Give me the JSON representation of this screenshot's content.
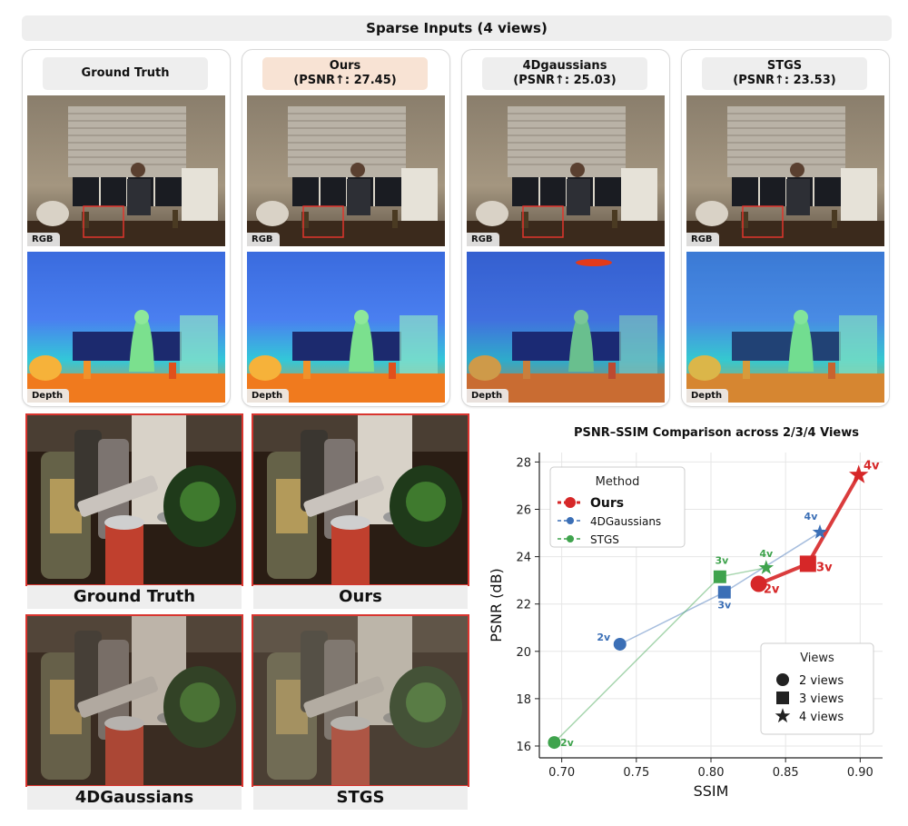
{
  "banner": "Sparse Inputs (4 views)",
  "columns": [
    {
      "title_line1": "Ground Truth",
      "title_line2": ""
    },
    {
      "title_line1": "Ours",
      "title_line2": "(PSNR↑: 27.45)"
    },
    {
      "title_line1": "4Dgaussians",
      "title_line2": "(PSNR↑: 25.03)"
    },
    {
      "title_line1": "STGS",
      "title_line2": "(PSNR↑: 23.53)"
    }
  ],
  "tags": {
    "rgb": "RGB",
    "depth": "Depth"
  },
  "crops": [
    "Ground Truth",
    "Ours",
    "4DGaussians",
    "STGS"
  ],
  "colors": {
    "ours": "#d62728",
    "gaussians4d": "#3b6fb6",
    "stgs": "#3fa34d",
    "highlight": "#f8e3d4"
  },
  "chart_data": {
    "type": "scatter",
    "title": "PSNR–SSIM Comparison across 2/3/4 Views",
    "xlabel": "SSIM",
    "ylabel": "PSNR (dB)",
    "xlim": [
      0.685,
      0.915
    ],
    "ylim": [
      15.5,
      28.4
    ],
    "xticks": [
      "0.70",
      "0.75",
      "0.80",
      "0.85",
      "0.90"
    ],
    "yticks": [
      "16",
      "18",
      "20",
      "22",
      "24",
      "26",
      "28"
    ],
    "grid": true,
    "legend_method": {
      "title": "Method",
      "placement": "top-left",
      "entries": [
        "Ours",
        "4DGaussians",
        "STGS"
      ]
    },
    "legend_views": {
      "title": "Views",
      "placement": "bottom-right",
      "entries": [
        "2 views",
        "3 views",
        "4 views"
      ]
    },
    "series": [
      {
        "name": "Ours",
        "color": "#d62728",
        "points": [
          {
            "x": 0.832,
            "y": 22.85,
            "label": "2v"
          },
          {
            "x": 0.865,
            "y": 23.7,
            "label": "3v"
          },
          {
            "x": 0.899,
            "y": 27.45,
            "label": "4v"
          }
        ]
      },
      {
        "name": "4DGaussians",
        "color": "#3b6fb6",
        "points": [
          {
            "x": 0.739,
            "y": 20.3,
            "label": "2v"
          },
          {
            "x": 0.809,
            "y": 22.5,
            "label": "3v"
          },
          {
            "x": 0.873,
            "y": 25.03,
            "label": "4v"
          }
        ]
      },
      {
        "name": "STGS",
        "color": "#3fa34d",
        "points": [
          {
            "x": 0.695,
            "y": 16.15,
            "label": "2v"
          },
          {
            "x": 0.806,
            "y": 23.15,
            "label": "3v"
          },
          {
            "x": 0.837,
            "y": 23.53,
            "label": "4v"
          }
        ]
      }
    ]
  }
}
